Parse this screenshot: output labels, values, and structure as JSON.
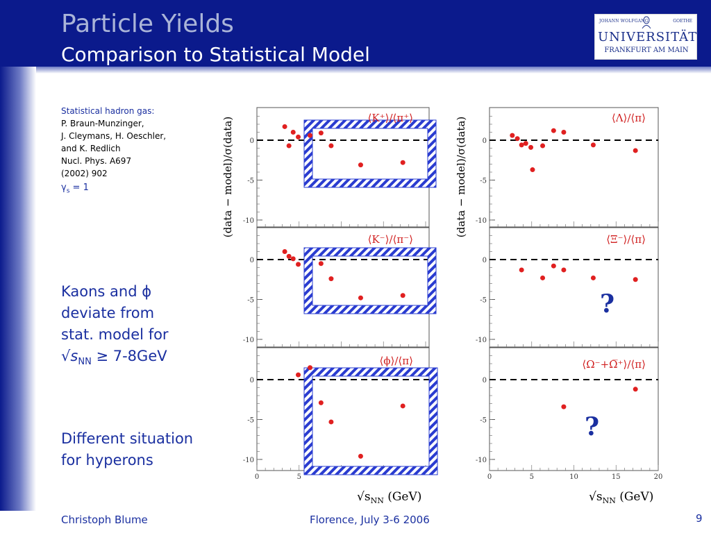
{
  "header": {
    "title": "Particle Yields",
    "subtitle": "Comparison to Statistical Model",
    "logo": {
      "line1_left": "JOHANN WOLFGANG",
      "line1_right": "GOETHE",
      "line2": "UNIVERSITÄT",
      "line3": "FRANKFURT AM MAIN"
    }
  },
  "left": {
    "ref_title": "Statistical hadron gas:",
    "ref_lines": [
      "P. Braun-Munzinger,",
      "J. Cleymans, H. Oeschler,",
      "and K. Redlich",
      "Nucl. Phys. A697",
      "(2002) 902"
    ],
    "gamma_symbol": "γ",
    "gamma_sub": "s",
    "gamma_rest": " = 1",
    "kaons_lines": [
      "Kaons and ϕ",
      "deviate from",
      "stat. model for"
    ],
    "kaons_sqrt": "√",
    "kaons_s": "s",
    "kaons_sub": "NN",
    "kaons_rest": " ≥ 7-8GeV",
    "hyperons_lines": [
      "Different situation",
      "for hyperons"
    ]
  },
  "footer": {
    "author": "Christoph Blume",
    "venue": "Florence, July 3-6 2006",
    "page": "9"
  },
  "colors": {
    "header_bg": "#0b1a8c",
    "accent_text": "#1a2fa0",
    "marker": "#e02020",
    "hatch": "#2a3cd0"
  },
  "chart_data": [
    {
      "type": "scatter",
      "panel": "left-top",
      "label": "⟨K⁺⟩/⟨π⁺⟩",
      "ylabel": "(data − model)/σ(data)",
      "xlim": [
        0,
        20
      ],
      "ylim": [
        -11,
        4
      ],
      "y_ticks": [
        "0",
        "-5",
        "-10"
      ],
      "x": [
        3.3,
        3.8,
        4.3,
        4.9,
        6.3,
        7.6,
        8.8,
        12.3,
        17.3
      ],
      "y": [
        1.7,
        -0.7,
        1.0,
        0.4,
        0.6,
        0.9,
        -0.7,
        -3.1,
        -2.8
      ],
      "highlight": true
    },
    {
      "type": "scatter",
      "panel": "left-middle",
      "label": "⟨K⁻⟩/⟨π⁻⟩",
      "xlim": [
        0,
        20
      ],
      "ylim": [
        -11,
        4
      ],
      "y_ticks": [
        "0",
        "-5",
        "-10"
      ],
      "x": [
        3.3,
        3.8,
        4.3,
        4.9,
        7.6,
        8.8,
        12.3,
        17.3
      ],
      "y": [
        1.0,
        0.4,
        0.1,
        -0.6,
        -0.5,
        -2.4,
        -4.8,
        -4.5
      ],
      "highlight": true
    },
    {
      "type": "scatter",
      "panel": "left-bottom",
      "label": "⟨ϕ⟩/⟨π⟩",
      "xlim": [
        0,
        20
      ],
      "ylim": [
        -11,
        4
      ],
      "y_ticks": [
        "0",
        "-5",
        "-10"
      ],
      "x_ticks": [
        "0",
        "5"
      ],
      "x": [
        4.9,
        6.3,
        7.6,
        8.8,
        12.3,
        17.3
      ],
      "y": [
        0.6,
        1.5,
        -2.9,
        -5.3,
        -9.6,
        -3.3
      ],
      "highlight": true
    },
    {
      "type": "scatter",
      "panel": "right-top",
      "label": "⟨Λ⟩/⟨π⟩",
      "ylabel": "(data − model)/σ(data)",
      "xlim": [
        0,
        20
      ],
      "ylim": [
        -11,
        4
      ],
      "y_ticks": [
        "0",
        "-5",
        "-10"
      ],
      "x": [
        2.7,
        3.3,
        3.8,
        4.3,
        4.9,
        5.1,
        6.3,
        7.6,
        8.8,
        12.3,
        17.3
      ],
      "y": [
        0.6,
        0.2,
        -0.6,
        -0.4,
        -0.9,
        -3.7,
        -0.7,
        1.2,
        1.0,
        -0.6,
        -1.3
      ],
      "highlight": false
    },
    {
      "type": "scatter",
      "panel": "right-middle",
      "label": "⟨Ξ⁻⟩/⟨π⟩",
      "xlim": [
        0,
        20
      ],
      "ylim": [
        -11,
        4
      ],
      "y_ticks": [
        "0",
        "-5",
        "-10"
      ],
      "x": [
        3.8,
        6.3,
        7.6,
        8.8,
        12.3,
        17.3
      ],
      "y": [
        -1.3,
        -2.3,
        -0.8,
        -1.3,
        -2.3,
        -2.5
      ],
      "highlight": false,
      "annotation": "?"
    },
    {
      "type": "scatter",
      "panel": "right-bottom",
      "label": "⟨Ω⁻+Ω̅⁺⟩/⟨π⟩",
      "xlim": [
        0,
        20
      ],
      "ylim": [
        -11,
        4
      ],
      "y_ticks": [
        "0",
        "-5",
        "-10"
      ],
      "x_ticks": [
        "0",
        "5",
        "10",
        "15",
        "20"
      ],
      "x": [
        8.8,
        17.3
      ],
      "y": [
        -3.4,
        -1.2
      ],
      "highlight": false,
      "annotation": "?"
    }
  ],
  "xlabel_left": "√s",
  "xlabel_sub": "NN",
  "xlabel_unit": " (GeV)"
}
